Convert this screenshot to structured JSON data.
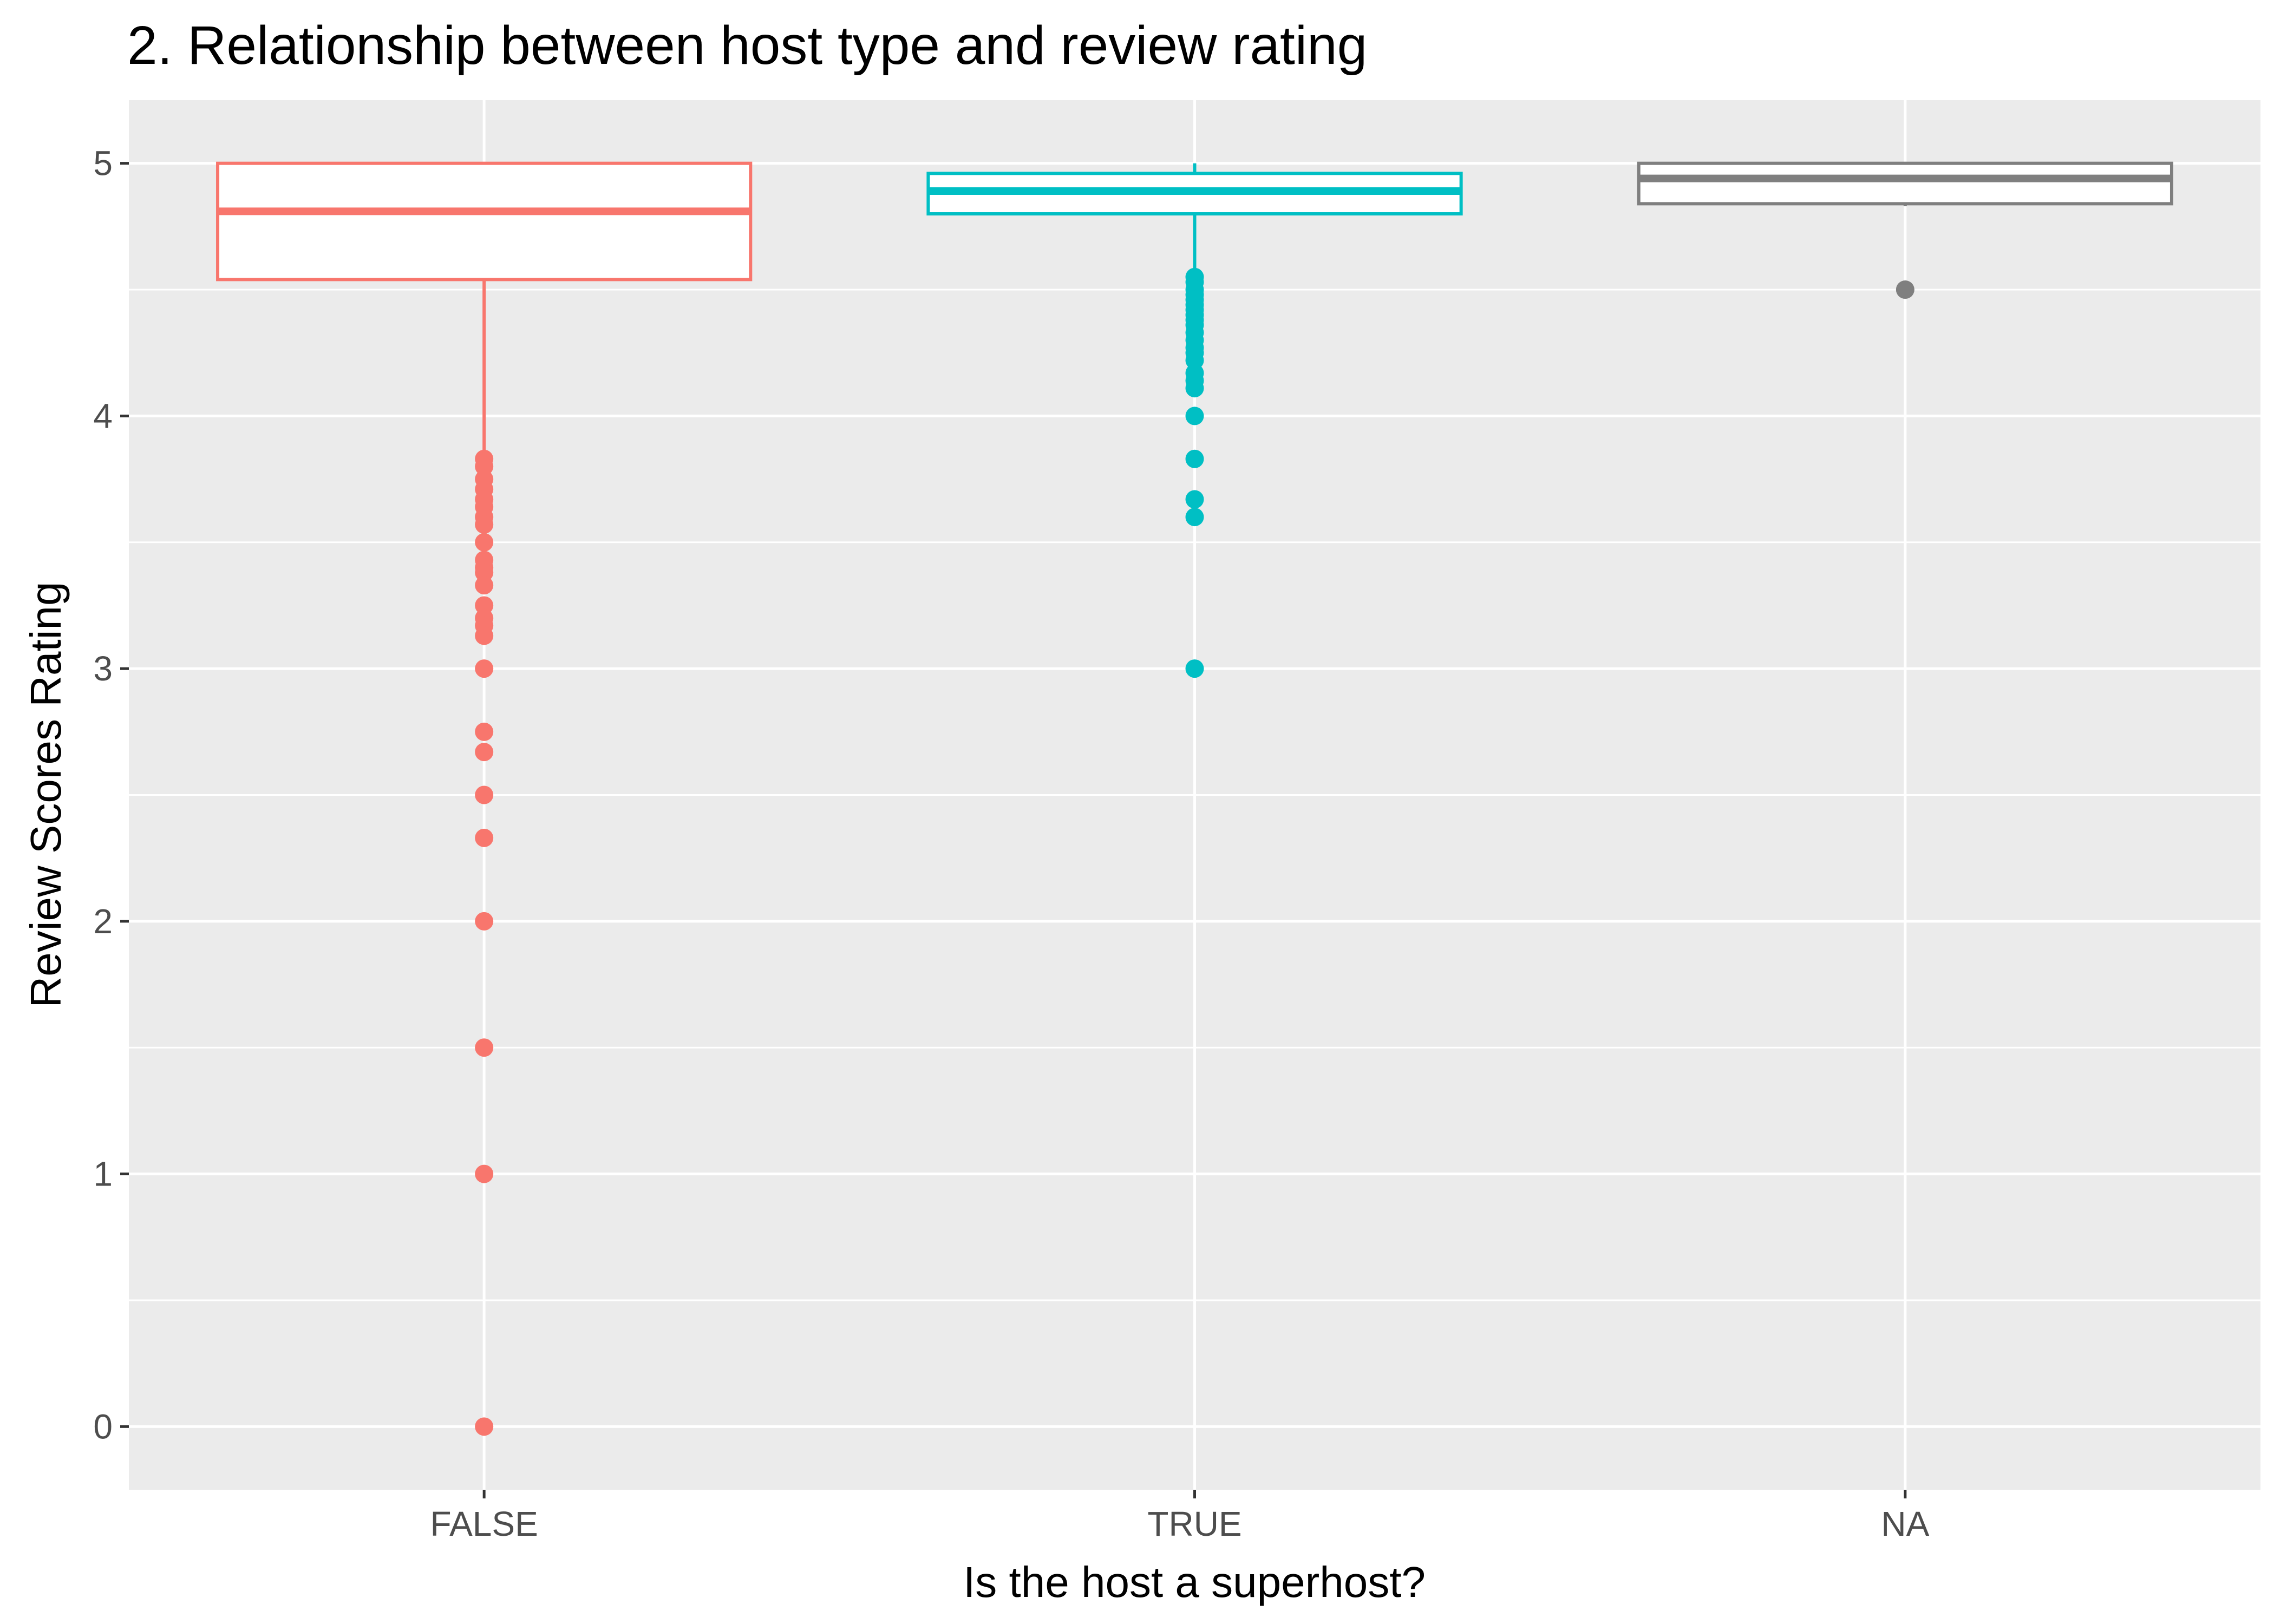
{
  "chart_data": {
    "type": "boxplot",
    "title": "2. Relationship between host type and review rating",
    "xlabel": "Is the host a superhost?",
    "ylabel": "Review Scores Rating",
    "ylim": [
      -0.25,
      5.25
    ],
    "yticks": [
      0,
      1,
      2,
      3,
      4,
      5
    ],
    "grid": true,
    "legend": "none",
    "categories": [
      "FALSE",
      "TRUE",
      "NA"
    ],
    "series": [
      {
        "category": "FALSE",
        "color": "#F8766D",
        "q1": 4.54,
        "median": 4.81,
        "q3": 5.0,
        "whisker_low": 3.85,
        "whisker_high": 5.0,
        "outliers": [
          3.83,
          3.8,
          3.75,
          3.71,
          3.67,
          3.64,
          3.6,
          3.57,
          3.5,
          3.43,
          3.4,
          3.38,
          3.33,
          3.25,
          3.2,
          3.17,
          3.13,
          3.0,
          2.75,
          2.67,
          2.5,
          2.33,
          2.0,
          1.5,
          1.0,
          0.0
        ]
      },
      {
        "category": "TRUE",
        "color": "#00BFC4",
        "q1": 4.8,
        "median": 4.89,
        "q3": 4.96,
        "whisker_low": 4.57,
        "whisker_high": 5.0,
        "outliers": [
          4.55,
          4.53,
          4.5,
          4.48,
          4.46,
          4.44,
          4.42,
          4.4,
          4.38,
          4.36,
          4.33,
          4.3,
          4.27,
          4.25,
          4.22,
          4.17,
          4.14,
          4.11,
          4.0,
          3.83,
          3.67,
          3.6,
          3.0
        ]
      },
      {
        "category": "NA",
        "color": "#7F7F7F",
        "q1": 4.84,
        "median": 4.94,
        "q3": 5.0,
        "whisker_low": 4.83,
        "whisker_high": 5.0,
        "outliers": [
          4.5
        ]
      }
    ]
  }
}
